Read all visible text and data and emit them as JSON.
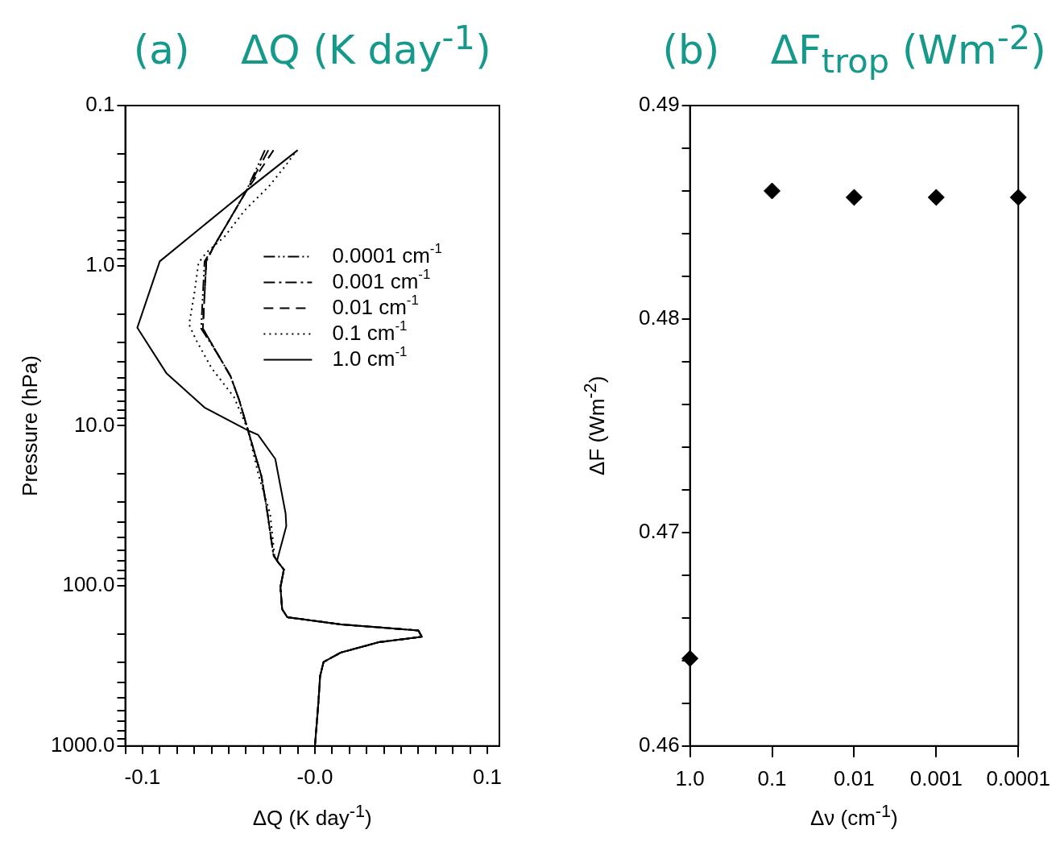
{
  "chart_data": [
    {
      "type": "line",
      "title": "(a)    ΔQ (K day$^{-1}$)",
      "xlabel": "ΔQ (K day$^{-1}$)",
      "ylabel": "Pressure (hPa)",
      "log": "y",
      "grid": false,
      "legend": "right",
      "xlim": [
        -0.11,
        0.107
      ],
      "xticks": [
        {
          "value": -0.11,
          "label": null
        },
        -0.1,
        {
          "value": -0.09,
          "label": null
        },
        {
          "value": -0.08,
          "label": null
        },
        {
          "value": -0.07,
          "label": null
        },
        {
          "value": -0.06,
          "label": null
        },
        {
          "value": -0.05,
          "label": null
        },
        {
          "value": -0.04,
          "label": null
        },
        {
          "value": -0.03,
          "label": null
        },
        {
          "value": -0.02,
          "label": null
        },
        {
          "value": -0.01,
          "label": null
        },
        {
          "value": 0,
          "label": "-0.0"
        },
        {
          "value": 0.01,
          "label": null
        },
        {
          "value": 0.02,
          "label": null
        },
        {
          "value": 0.03,
          "label": null
        },
        {
          "value": 0.04,
          "label": null
        },
        {
          "value": 0.05,
          "label": null
        },
        {
          "value": 0.06,
          "label": null
        },
        {
          "value": 0.07,
          "label": null
        },
        {
          "value": 0.08,
          "label": null
        },
        {
          "value": 0.09,
          "label": null
        },
        0.1
      ],
      "ylim": [
        1000,
        0.1
      ],
      "yticks": [
        0.1,
        {
          "value": 0.2,
          "label": null
        },
        {
          "value": 0.3,
          "label": null
        },
        {
          "value": 0.4,
          "label": null
        },
        {
          "value": 0.5,
          "label": null
        },
        {
          "value": 0.6,
          "label": null
        },
        {
          "value": 0.7,
          "label": null
        },
        {
          "value": 0.8,
          "label": null
        },
        {
          "value": 0.9,
          "label": null
        },
        {
          "value": 1,
          "label": "1.0"
        },
        {
          "value": 2,
          "label": null
        },
        {
          "value": 3,
          "label": null
        },
        {
          "value": 4,
          "label": null
        },
        {
          "value": 5,
          "label": null
        },
        {
          "value": 6,
          "label": null
        },
        {
          "value": 7,
          "label": null
        },
        {
          "value": 8,
          "label": null
        },
        {
          "value": 9,
          "label": null
        },
        {
          "value": 10,
          "label": "10.0"
        },
        {
          "value": 20,
          "label": null
        },
        {
          "value": 30,
          "label": null
        },
        {
          "value": 40,
          "label": null
        },
        {
          "value": 50,
          "label": null
        },
        {
          "value": 60,
          "label": null
        },
        {
          "value": 70,
          "label": null
        },
        {
          "value": 80,
          "label": null
        },
        {
          "value": 90,
          "label": null
        },
        {
          "value": 100,
          "label": "100.0"
        },
        {
          "value": 200,
          "label": null
        },
        {
          "value": 300,
          "label": null
        },
        {
          "value": 400,
          "label": null
        },
        {
          "value": 500,
          "label": null
        },
        {
          "value": 600,
          "label": null
        },
        {
          "value": 700,
          "label": null
        },
        {
          "value": 800,
          "label": null
        },
        {
          "value": 900,
          "label": null
        },
        {
          "value": 1000,
          "label": "1000.0"
        }
      ],
      "series": [
        {
          "name": "0.0001 cm$^{-1}$",
          "color": "#000000",
          "line_style": "dashdotdot",
          "x": [
            -0.029,
            -0.04,
            -0.059,
            -0.064,
            -0.066,
            -0.056,
            -0.049,
            -0.044,
            -0.039,
            -0.031,
            -0.0275,
            -0.024,
            -0.021,
            -0.018,
            -0.02,
            -0.019,
            -0.016,
            0.015,
            0.06,
            0.062,
            0.037,
            0.015,
            0.005,
            0.003,
            0.002,
            0.0
          ],
          "values": [
            0.19,
            0.345,
            0.77,
            0.94,
            2.47,
            3.63,
            4.89,
            6.87,
            10.5,
            20.7,
            35.3,
            64.6,
            72,
            79,
            102,
            140,
            157,
            174,
            190,
            208,
            225,
            261,
            299,
            367,
            541,
            1000
          ]
        },
        {
          "name": "0.001 cm$^{-1}$",
          "color": "#000000",
          "line_style": "dashdot",
          "x": [
            -0.027,
            -0.04,
            -0.059,
            -0.063,
            -0.065,
            -0.056,
            -0.049,
            -0.044,
            -0.039,
            -0.031,
            -0.0275,
            -0.024,
            -0.021,
            -0.018,
            -0.02,
            -0.019,
            -0.016,
            0.015,
            0.06,
            0.062,
            0.037,
            0.015,
            0.005,
            0.003,
            0.002,
            0.0
          ],
          "values": [
            0.19,
            0.345,
            0.77,
            0.94,
            2.47,
            3.63,
            4.89,
            6.87,
            10.5,
            20.7,
            35.3,
            64.6,
            72,
            79,
            102,
            140,
            157,
            174,
            190,
            208,
            225,
            261,
            299,
            367,
            541,
            1000
          ]
        },
        {
          "name": "0.01 cm$^{-1}$",
          "color": "#000000",
          "line_style": "dashed",
          "x": [
            -0.024,
            -0.04,
            -0.059,
            -0.063,
            -0.065,
            -0.056,
            -0.049,
            -0.044,
            -0.039,
            -0.031,
            -0.0275,
            -0.024,
            -0.021,
            -0.018,
            -0.02,
            -0.019,
            -0.016,
            0.015,
            0.06,
            0.062,
            0.037,
            0.015,
            0.005,
            0.003,
            0.002,
            0.0
          ],
          "values": [
            0.19,
            0.345,
            0.77,
            0.94,
            2.47,
            3.63,
            4.89,
            6.87,
            10.5,
            20.7,
            35.3,
            64.6,
            72,
            79,
            102,
            140,
            157,
            174,
            190,
            208,
            225,
            261,
            299,
            367,
            541,
            1000
          ]
        },
        {
          "name": "0.1 cm$^{-1}$",
          "color": "#000000",
          "line_style": "dotted",
          "x": [
            -0.012,
            -0.017,
            -0.0265,
            -0.0405,
            -0.0525,
            -0.063,
            -0.0675,
            -0.07,
            -0.073,
            -0.069,
            -0.06,
            -0.047,
            -0.039,
            -0.0325,
            -0.026,
            -0.0234,
            -0.021,
            -0.018,
            -0.02,
            -0.019,
            -0.016,
            0.015,
            0.06,
            0.062,
            0.037,
            0.015,
            0.005,
            0.003,
            0.002,
            0.0
          ],
          "values": [
            0.2,
            0.237,
            0.318,
            0.449,
            0.66,
            0.83,
            0.96,
            1.51,
            2.33,
            2.9,
            4.36,
            6.6,
            10.5,
            20.7,
            35.3,
            64.6,
            72,
            79,
            102,
            140,
            157,
            174,
            190,
            208,
            225,
            261,
            299,
            367,
            541,
            1000
          ]
        },
        {
          "name": "1.0 cm$^{-1}$",
          "color": "#000000",
          "line_style": "solid",
          "x": [
            -0.01,
            -0.0405,
            -0.09,
            -0.103,
            -0.086,
            -0.064,
            -0.038,
            -0.033,
            -0.023,
            -0.017,
            -0.0166,
            -0.022,
            -0.018,
            -0.02,
            -0.019,
            -0.016,
            0.015,
            0.06,
            0.062,
            0.037,
            0.015,
            0.005,
            0.003,
            0.002,
            0.0
          ],
          "values": [
            0.19,
            0.345,
            0.94,
            2.44,
            4.72,
            7.7,
            10.8,
            11.4,
            16.1,
            35.3,
            42.4,
            69.8,
            79,
            102,
            140,
            157,
            174,
            190,
            208,
            225,
            261,
            299,
            367,
            541,
            1000
          ]
        }
      ]
    },
    {
      "type": "scatter",
      "title": "(b)    ΔF$_{trop}$ (Wm$^{-2}$)",
      "xlabel": "Δν (cm$^{-1}$)",
      "ylabel": "ΔF (Wm$^{-2}$)",
      "grid": false,
      "marker": "diamond",
      "color": "#000000",
      "categories": [
        "1.0",
        "0.1",
        "0.01",
        "0.001",
        "0.0001"
      ],
      "values": [
        0.4641,
        0.486,
        0.4857,
        0.4857,
        0.4857
      ],
      "ylim": [
        0.46,
        0.49
      ],
      "yticks": [
        0.46,
        {
          "value": 0.462,
          "label": null
        },
        {
          "value": 0.464,
          "label": null
        },
        {
          "value": 0.466,
          "label": null
        },
        {
          "value": 0.468,
          "label": null
        },
        0.47,
        {
          "value": 0.472,
          "label": null
        },
        {
          "value": 0.474,
          "label": null
        },
        {
          "value": 0.476,
          "label": null
        },
        {
          "value": 0.478,
          "label": null
        },
        0.48,
        {
          "value": 0.482,
          "label": null
        },
        {
          "value": 0.484,
          "label": null
        },
        {
          "value": 0.486,
          "label": null
        },
        {
          "value": 0.488,
          "label": null
        },
        0.49
      ]
    }
  ]
}
